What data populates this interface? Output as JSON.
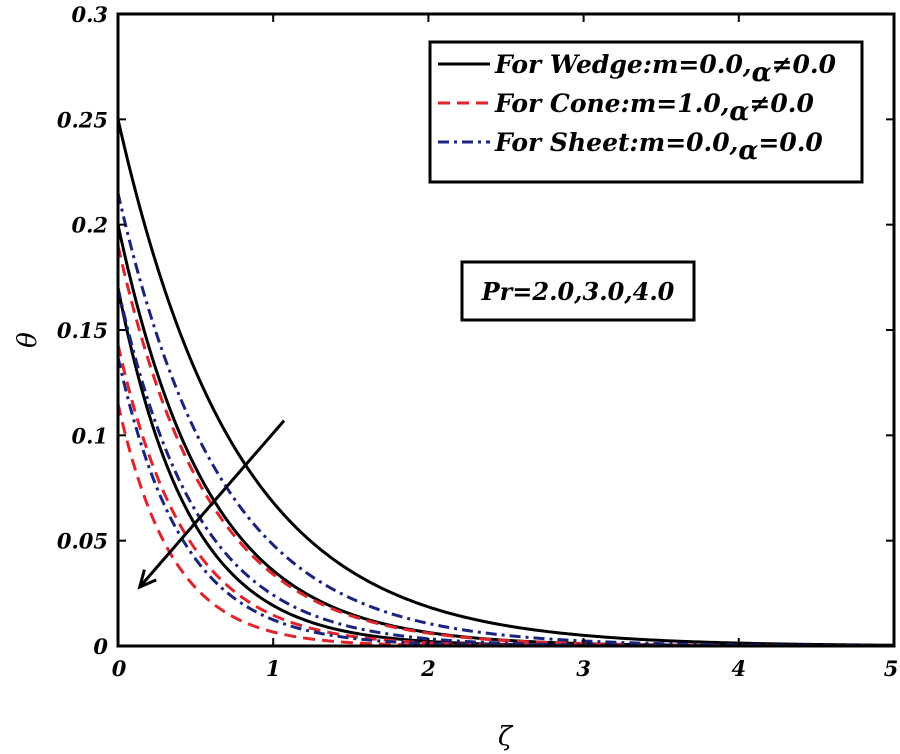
{
  "chart_data": {
    "type": "line",
    "xlabel": "ζ",
    "ylabel": "θ",
    "xlim": [
      0,
      5
    ],
    "ylim": [
      0,
      0.3
    ],
    "x_ticks": [
      "0",
      "1",
      "2",
      "3",
      "4",
      "5"
    ],
    "y_ticks": [
      "0",
      "0.05",
      "0.1",
      "0.15",
      "0.2",
      "0.25",
      "0.3"
    ],
    "grid": false,
    "legend_position": "top-right",
    "annotation": "Pr=2.0,3.0,4.0",
    "arrow": {
      "from": [
        1.07,
        0.107
      ],
      "to": [
        0.14,
        0.028
      ]
    },
    "legend": [
      {
        "label": "For Wedge:m=0.0,",
        "symbol": "α",
        "rest": "≠0.0",
        "color": "#000000",
        "style": "solid"
      },
      {
        "label": "For Cone:m=1.0,",
        "symbol": "α",
        "rest": "≠0.0",
        "color": "#e0242b",
        "style": "dashed"
      },
      {
        "label": "For Sheet:m=0.0,",
        "symbol": "α",
        "rest": "=0.0",
        "color": "#1a237e",
        "style": "dashdot"
      }
    ],
    "series": [
      {
        "group": 0,
        "pr": 2.0,
        "y0": 0.25,
        "decay": 1.3
      },
      {
        "group": 0,
        "pr": 3.0,
        "y0": 0.2,
        "decay": 1.72
      },
      {
        "group": 0,
        "pr": 4.0,
        "y0": 0.17,
        "decay": 2.18
      },
      {
        "group": 1,
        "pr": 2.0,
        "y0": 0.19,
        "decay": 1.72
      },
      {
        "group": 1,
        "pr": 3.0,
        "y0": 0.143,
        "decay": 2.28
      },
      {
        "group": 1,
        "pr": 4.0,
        "y0": 0.115,
        "decay": 2.85
      },
      {
        "group": 2,
        "pr": 2.0,
        "y0": 0.215,
        "decay": 1.5
      },
      {
        "group": 2,
        "pr": 3.0,
        "y0": 0.17,
        "decay": 1.95
      },
      {
        "group": 2,
        "pr": 4.0,
        "y0": 0.137,
        "decay": 2.4
      }
    ]
  }
}
